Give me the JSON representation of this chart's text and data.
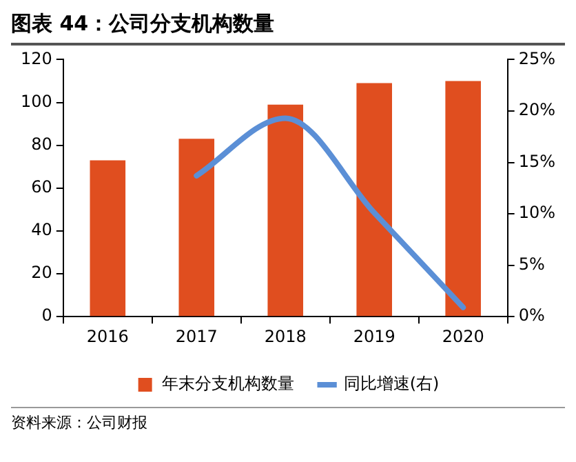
{
  "chart_data": {
    "type": "bar",
    "title": "图表 44：公司分支机构数量",
    "categories": [
      "2016",
      "2017",
      "2018",
      "2019",
      "2020"
    ],
    "series": [
      {
        "name": "年末分支机构数量",
        "color": "#e04e1f",
        "values": [
          73,
          83,
          99,
          109,
          110
        ]
      },
      {
        "name": "同比增速(右)",
        "type": "line",
        "axis": "y2",
        "color": "#5b8fd6",
        "values": [
          null,
          13.7,
          19.3,
          10.1,
          0.9
        ]
      }
    ],
    "ylim": [
      0,
      120
    ],
    "yticks": [
      0,
      20,
      40,
      60,
      80,
      100,
      120
    ],
    "y2lim": [
      0,
      25
    ],
    "y2ticks": [
      {
        "value": 0,
        "label": "0%"
      },
      {
        "value": 5,
        "label": "5%"
      },
      {
        "value": 10,
        "label": "10%"
      },
      {
        "value": 15,
        "label": "15%"
      },
      {
        "value": 20,
        "label": "20%"
      },
      {
        "value": 25,
        "label": "25%"
      }
    ],
    "grid": false,
    "legend": "bottom",
    "marker": "none",
    "annotations": [
      "资料来源：公司财报"
    ]
  }
}
